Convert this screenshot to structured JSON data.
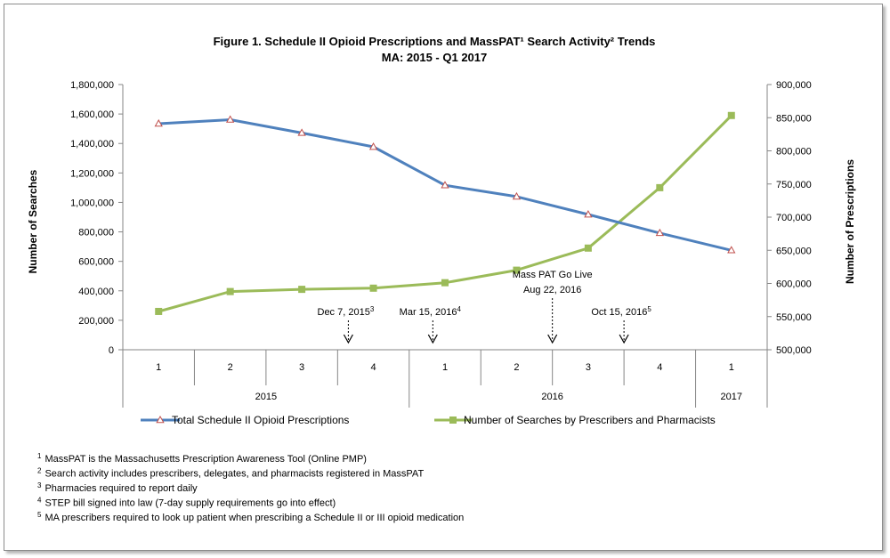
{
  "chart_data": {
    "type": "line",
    "title": "Figure 1. Schedule II Opioid Prescriptions and MassPAT¹ Search Activity² Trends",
    "subtitle": "MA: 2015 - Q1 2017",
    "quarters": [
      "1",
      "2",
      "3",
      "4",
      "1",
      "2",
      "3",
      "4",
      "1"
    ],
    "years": [
      {
        "label": "2015",
        "start": 0,
        "count": 4
      },
      {
        "label": "2016",
        "start": 4,
        "count": 4
      },
      {
        "label": "2017",
        "start": 8,
        "count": 1
      }
    ],
    "y_left": {
      "label": "Number of Searches",
      "min": 0,
      "max": 1800000,
      "ticks": [
        "0",
        "200,000",
        "400,000",
        "600,000",
        "800,000",
        "1,000,000",
        "1,200,000",
        "1,400,000",
        "1,600,000",
        "1,800,000"
      ]
    },
    "y_right": {
      "label": "Number of Prescriptions",
      "min": 500000,
      "max": 900000,
      "ticks": [
        "500,000",
        "550,000",
        "600,000",
        "650,000",
        "700,000",
        "750,000",
        "800,000",
        "850,000",
        "900,000"
      ]
    },
    "series": [
      {
        "name": "Total Schedule II Opioid Prescriptions",
        "axis": "right",
        "color": "#4F81BD",
        "marker": "triangle",
        "values": [
          841000,
          847000,
          827000,
          806000,
          748000,
          731000,
          704000,
          676000,
          650000
        ]
      },
      {
        "name": "Number of Searches by Prescribers and Pharmacists",
        "axis": "left",
        "color": "#9BBB59",
        "marker": "square",
        "values": [
          260000,
          395000,
          410000,
          418000,
          455000,
          540000,
          690000,
          1100000,
          1590000
        ]
      }
    ],
    "annotations": [
      {
        "label": "Dec 7, 2015",
        "sup": "3",
        "quarter": 3.15
      },
      {
        "label": "Mar 15, 2016",
        "sup": "4",
        "quarter": 4.33
      },
      {
        "label": "Mass PAT Go Live",
        "label2": "Aug 22, 2016",
        "quarter": 6.0
      },
      {
        "label": "Oct 15, 2016",
        "sup": "5",
        "quarter": 7.0
      }
    ],
    "footnotes": [
      {
        "sup": "1",
        "text": "MassPAT is the Massachusetts Prescription Awareness Tool (Online PMP)"
      },
      {
        "sup": "2",
        "text": "Search activity includes prescribers, delegates, and pharmacists registered in MassPAT"
      },
      {
        "sup": "3",
        "text": "Pharmacies required to report daily"
      },
      {
        "sup": "4",
        "text": "STEP bill signed into law (7-day supply requirements go into effect)"
      },
      {
        "sup": "5",
        "text": "MA prescribers required to look up patient when prescribing a Schedule II or III opioid medication"
      }
    ]
  }
}
